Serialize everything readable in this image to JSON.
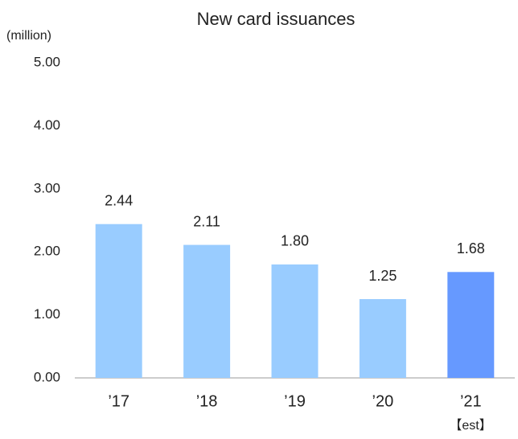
{
  "chart_data": {
    "type": "bar",
    "title": "New card issuances",
    "y_label": "(million)",
    "categories": [
      "’17",
      "’18",
      "’19",
      "’20",
      "’21"
    ],
    "values": [
      2.44,
      2.11,
      1.8,
      1.25,
      1.68
    ],
    "value_labels": [
      "2.44",
      "2.11",
      "1.80",
      "1.25",
      "1.68"
    ],
    "colors": [
      "#99ccff",
      "#99ccff",
      "#99ccff",
      "#99ccff",
      "#6699ff"
    ],
    "annotation": "【est】",
    "ylim": [
      0,
      5
    ],
    "yticks": [
      {
        "value": 0,
        "label": "0.00"
      },
      {
        "value": 1,
        "label": "1.00"
      },
      {
        "value": 2,
        "label": "2.00"
      },
      {
        "value": 3,
        "label": "3.00"
      },
      {
        "value": 4,
        "label": "4.00"
      },
      {
        "value": 5,
        "label": "5.00"
      }
    ],
    "grid": false
  }
}
